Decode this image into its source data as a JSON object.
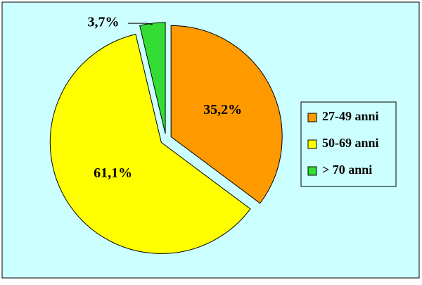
{
  "chart_data": {
    "type": "pie",
    "categories": [
      "27-49 anni",
      "50-69 anni",
      "> 70 anni"
    ],
    "values": [
      35.2,
      61.1,
      3.7
    ],
    "value_labels": [
      "35,2%",
      "61,1%",
      "3,7%"
    ],
    "colors": [
      "#ff9900",
      "#ffff00",
      "#33dd33"
    ],
    "legend": "right"
  }
}
